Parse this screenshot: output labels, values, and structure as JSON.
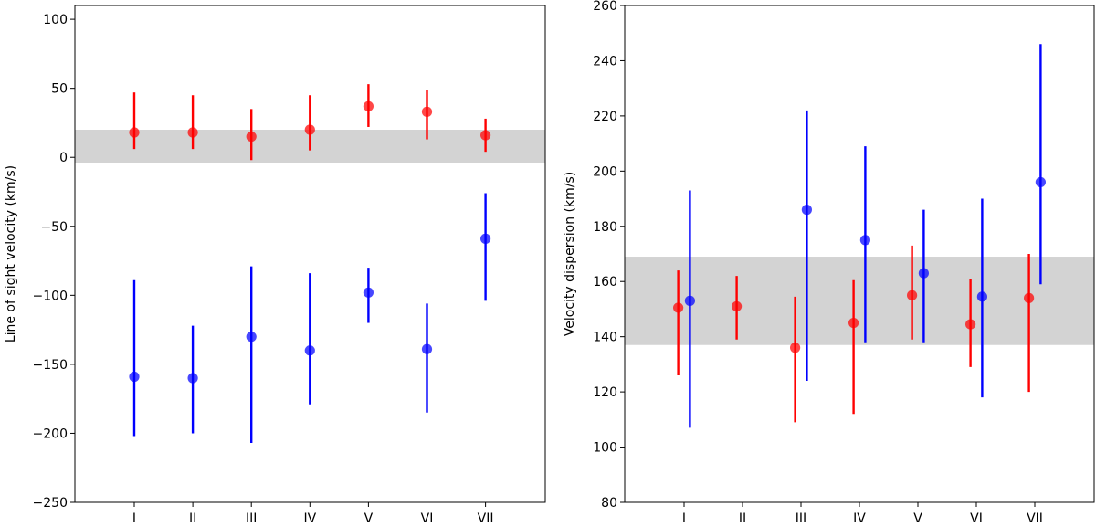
{
  "chart_data": [
    {
      "type": "errorbar",
      "title": "",
      "xlabel": "",
      "ylabel": "Line of sight velocity (km/s)",
      "ylim": [
        -250,
        110
      ],
      "yticks": [
        -250,
        -200,
        -150,
        -100,
        -50,
        0,
        50,
        100
      ],
      "ytick_labels": [
        "−250",
        "−200",
        "−150",
        "−100",
        "−50",
        "0",
        "50",
        "100"
      ],
      "categories": [
        "I",
        "II",
        "III",
        "IV",
        "V",
        "VI",
        "VII"
      ],
      "band": {
        "low": -4,
        "high": 20,
        "color": "#d3d3d3"
      },
      "series": [
        {
          "name": "red",
          "color": "#ff0000",
          "offset": 0,
          "values": [
            18,
            18,
            15,
            20,
            37,
            33,
            16
          ],
          "err_low": [
            6,
            6,
            -2,
            5,
            22,
            13,
            4
          ],
          "err_high": [
            47,
            45,
            35,
            45,
            53,
            49,
            28
          ]
        },
        {
          "name": "blue",
          "color": "#0000ff",
          "offset": 0,
          "values": [
            -159,
            -160,
            -130,
            -140,
            -98,
            -139,
            -59
          ],
          "err_low": [
            -202,
            -200,
            -207,
            -179,
            -120,
            -185,
            -104
          ],
          "err_high": [
            -89,
            -122,
            -79,
            -84,
            -80,
            -106,
            -26
          ]
        }
      ]
    },
    {
      "type": "errorbar",
      "title": "",
      "xlabel": "",
      "ylabel": "Velocity dispersion (km/s)",
      "ylim": [
        80,
        260
      ],
      "yticks": [
        80,
        100,
        120,
        140,
        160,
        180,
        200,
        220,
        240,
        260
      ],
      "ytick_labels": [
        "80",
        "100",
        "120",
        "140",
        "160",
        "180",
        "200",
        "220",
        "240",
        "260"
      ],
      "categories": [
        "I",
        "II",
        "III",
        "IV",
        "V",
        "VI",
        "VII"
      ],
      "band": {
        "low": 137,
        "high": 169,
        "color": "#d3d3d3"
      },
      "series": [
        {
          "name": "red",
          "color": "#ff0000",
          "offset": -0.1,
          "values": [
            150.5,
            151,
            136,
            145,
            155,
            144.5,
            154
          ],
          "err_low": [
            126,
            139,
            109,
            112,
            139,
            129,
            120
          ],
          "err_high": [
            164,
            162,
            154.5,
            160.5,
            173,
            161,
            170
          ]
        },
        {
          "name": "blue",
          "color": "#0000ff",
          "offset": 0.1,
          "values": [
            153,
            null,
            186,
            175,
            163,
            154.5,
            196
          ],
          "err_low": [
            107,
            null,
            124,
            138,
            138,
            118,
            159
          ],
          "err_high": [
            193,
            null,
            222,
            209,
            186,
            190,
            246
          ]
        }
      ]
    }
  ]
}
